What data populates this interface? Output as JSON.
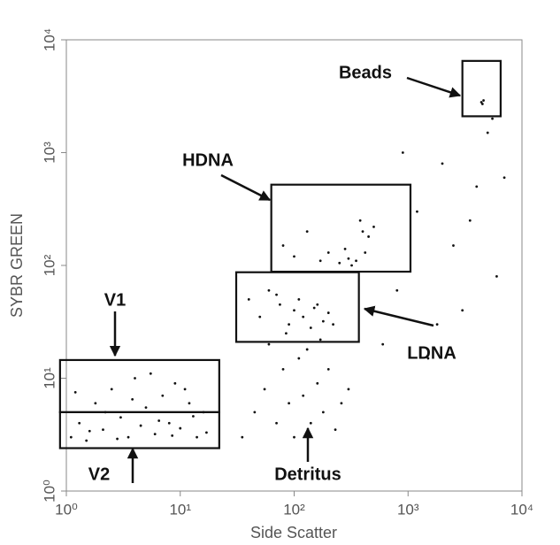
{
  "chart_data": {
    "type": "scatter",
    "xlabel": "Side Scatter",
    "ylabel": "SYBR GREEN",
    "xscale": "log",
    "yscale": "log",
    "xlim": [
      1,
      10000
    ],
    "ylim": [
      1,
      10000
    ],
    "xticks": [
      {
        "value": 1,
        "label": "10⁰"
      },
      {
        "value": 10,
        "label": "10¹"
      },
      {
        "value": 100,
        "label": "10²"
      },
      {
        "value": 1000,
        "label": "10³"
      },
      {
        "value": 10000,
        "label": "10⁴"
      }
    ],
    "yticks": [
      {
        "value": 1,
        "label": "10⁰"
      },
      {
        "value": 10,
        "label": "10¹"
      },
      {
        "value": 100,
        "label": "10²"
      },
      {
        "value": 1000,
        "label": "10³"
      },
      {
        "value": 10000,
        "label": "10⁴"
      }
    ],
    "color": "#111111",
    "x": [
      1.1,
      1.3,
      1.5,
      1.8,
      2.1,
      2.5,
      3,
      3.5,
      4,
      5,
      6,
      7,
      8,
      9,
      10,
      12,
      14,
      16,
      1.2,
      1.6,
      2.2,
      2.8,
      3.8,
      4.5,
      5.5,
      6.5,
      8.5,
      11,
      13,
      17,
      35,
      45,
      55,
      70,
      80,
      90,
      100,
      110,
      120,
      140,
      160,
      180,
      200,
      230,
      260,
      60,
      85,
      130,
      170,
      300,
      40,
      50,
      60,
      75,
      90,
      100,
      120,
      140,
      160,
      180,
      200,
      220,
      70,
      110,
      150,
      80,
      100,
      130,
      170,
      200,
      250,
      300,
      350,
      400,
      450,
      500,
      280,
      320,
      380,
      420,
      600,
      800,
      1200,
      1500,
      2000,
      2500,
      3000,
      4000,
      5000,
      6000,
      7000,
      900,
      1800,
      3500,
      5500,
      4400,
      4600,
      4500
    ],
    "y": [
      3,
      4,
      2.8,
      6,
      3.5,
      8,
      4.5,
      3,
      10,
      5.5,
      3.2,
      7,
      4,
      9,
      3.6,
      6,
      3,
      5,
      7.5,
      3.4,
      5,
      2.9,
      6.5,
      3.8,
      11,
      4.2,
      3.1,
      8,
      4.6,
      3.3,
      3,
      5,
      8,
      4,
      12,
      6,
      3,
      15,
      7,
      4,
      9,
      5,
      12,
      3.5,
      6,
      20,
      25,
      18,
      22,
      8,
      50,
      35,
      60,
      45,
      30,
      40,
      35,
      28,
      45,
      32,
      38,
      30,
      55,
      50,
      42,
      150,
      120,
      200,
      110,
      130,
      105,
      115,
      110,
      200,
      180,
      220,
      140,
      100,
      250,
      130,
      20,
      60,
      300,
      15,
      800,
      150,
      40,
      500,
      1500,
      80,
      600,
      1000,
      30,
      250,
      2000,
      2800,
      2900,
      2700
    ],
    "gates": [
      {
        "name": "Beads",
        "xlim": [
          3000,
          6500
        ],
        "ylim": [
          2100,
          6500
        ]
      },
      {
        "name": "HDNA",
        "xlim": [
          63,
          1050
        ],
        "ylim": [
          88,
          520
        ]
      },
      {
        "name": "LDNA",
        "xlim": [
          31,
          370
        ],
        "ylim": [
          21,
          87
        ]
      },
      {
        "name": "V1",
        "xlim": [
          0.88,
          22
        ],
        "ylim": [
          5,
          14.5
        ]
      },
      {
        "name": "V2",
        "xlim": [
          0.88,
          22
        ],
        "ylim": [
          2.4,
          5
        ]
      },
      {
        "name": "Detritus"
      }
    ]
  }
}
